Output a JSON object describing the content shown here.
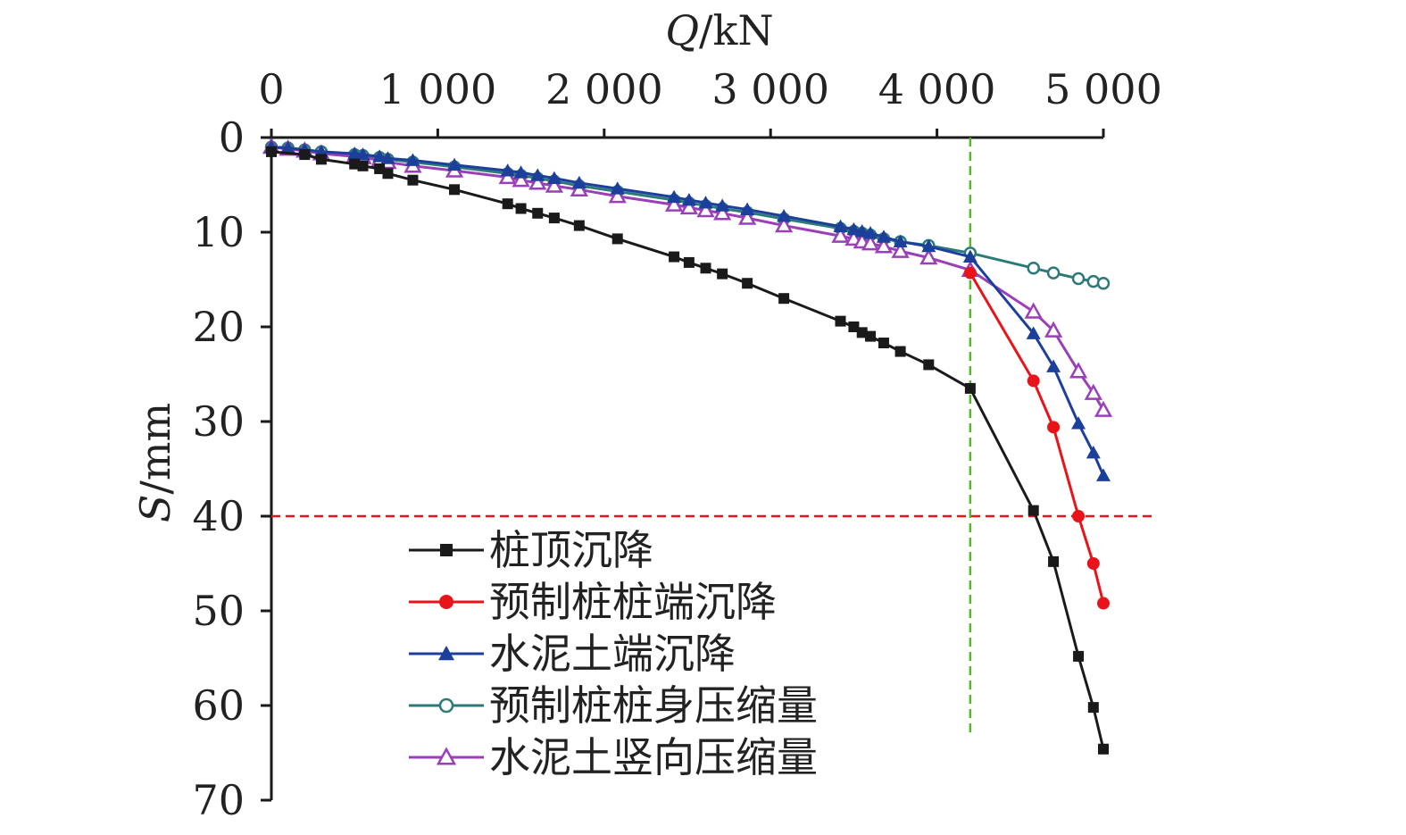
{
  "chart_data": {
    "type": "line",
    "xlabel": "Q/kN",
    "ylabel": "S/mm",
    "x_axis_position": "top",
    "y_axis_inverted": true,
    "xlim": [
      0,
      5000
    ],
    "ylim": [
      0,
      70
    ],
    "xticks": [
      0,
      1000,
      2000,
      3000,
      4000,
      5000
    ],
    "xtick_labels": [
      "0",
      "1 000",
      "2 000",
      "3 000",
      "4 000",
      "5 000"
    ],
    "yticks": [
      0,
      10,
      20,
      30,
      40,
      50,
      60,
      70
    ],
    "ytick_labels": [
      "0",
      "10",
      "20",
      "30",
      "40",
      "50",
      "60",
      "70"
    ],
    "grid": false,
    "legend_position": "bottom-center",
    "reference_lines": [
      {
        "orientation": "horizontal",
        "value": 40,
        "color": "#e8141a",
        "style": "dashed"
      },
      {
        "orientation": "vertical",
        "value": 4200,
        "color": "#5ab42f",
        "style": "dashed",
        "range": [
          0,
          63
        ]
      }
    ],
    "series": [
      {
        "name": "桩顶沉降",
        "color": "#1a1a1a",
        "marker": "square-filled",
        "x": [
          0,
          200,
          300,
          500,
          550,
          650,
          700,
          850,
          1100,
          1420,
          1500,
          1600,
          1700,
          1850,
          2080,
          2420,
          2510,
          2610,
          2710,
          2860,
          3080,
          3420,
          3500,
          3550,
          3600,
          3680,
          3780,
          3950,
          4200,
          4580,
          4700,
          4850,
          4940,
          5000
        ],
        "y": [
          1.5,
          1.8,
          2.3,
          2.8,
          3.0,
          3.3,
          3.8,
          4.5,
          5.5,
          7.0,
          7.5,
          8.0,
          8.5,
          9.3,
          10.7,
          12.6,
          13.2,
          13.8,
          14.4,
          15.4,
          17.0,
          19.4,
          20.0,
          20.6,
          21.0,
          21.7,
          22.6,
          24.0,
          26.5,
          39.4,
          44.8,
          54.8,
          60.2,
          64.6
        ]
      },
      {
        "name": "预制桩桩端沉降",
        "color": "#e8141a",
        "marker": "circle-filled",
        "x": [
          4200,
          4580,
          4700,
          4850,
          4940,
          5000
        ],
        "y": [
          14.3,
          25.7,
          30.6,
          40.0,
          45.0,
          49.2
        ]
      },
      {
        "name": "水泥土端沉降",
        "color": "#1c3f9c",
        "marker": "triangle-filled",
        "x": [
          0,
          100,
          200,
          300,
          500,
          550,
          650,
          700,
          850,
          1100,
          1420,
          1500,
          1600,
          1700,
          1850,
          2080,
          2420,
          2510,
          2610,
          2710,
          2860,
          3080,
          3420,
          3500,
          3550,
          3600,
          3680,
          3780,
          3950,
          4200,
          4580,
          4700,
          4850,
          4940,
          5000
        ],
        "y": [
          1.0,
          1.1,
          1.3,
          1.5,
          1.7,
          1.8,
          2.0,
          2.2,
          2.4,
          2.9,
          3.5,
          3.7,
          4.0,
          4.3,
          4.8,
          5.4,
          6.3,
          6.6,
          6.9,
          7.2,
          7.6,
          8.3,
          9.4,
          9.7,
          9.9,
          10.1,
          10.5,
          11.0,
          11.5,
          12.6,
          20.7,
          24.2,
          30.2,
          33.3,
          35.7
        ]
      },
      {
        "name": "预制桩桩身压缩量",
        "color": "#2c7a78",
        "marker": "circle-open",
        "x": [
          0,
          100,
          200,
          300,
          500,
          550,
          650,
          700,
          850,
          1100,
          1420,
          1500,
          1600,
          1700,
          1850,
          2080,
          2420,
          2510,
          2610,
          2710,
          2860,
          3080,
          3420,
          3500,
          3550,
          3600,
          3680,
          3780,
          3950,
          4200,
          4580,
          4700,
          4850,
          4940,
          5000
        ],
        "y": [
          1.0,
          1.1,
          1.3,
          1.5,
          1.8,
          1.9,
          2.1,
          2.3,
          2.6,
          3.1,
          3.8,
          4.0,
          4.3,
          4.6,
          5.1,
          5.7,
          6.6,
          6.9,
          7.2,
          7.5,
          7.9,
          8.6,
          9.6,
          9.9,
          10.1,
          10.3,
          10.7,
          11.0,
          11.4,
          12.2,
          13.8,
          14.3,
          14.9,
          15.2,
          15.4
        ]
      },
      {
        "name": "水泥土竖向压缩量",
        "color": "#9a3fb8",
        "marker": "triangle-open",
        "x": [
          0,
          100,
          200,
          300,
          500,
          550,
          650,
          700,
          850,
          1100,
          1420,
          1500,
          1600,
          1700,
          1850,
          2080,
          2420,
          2510,
          2610,
          2710,
          2860,
          3080,
          3420,
          3500,
          3550,
          3600,
          3680,
          3780,
          3950,
          4200,
          4580,
          4700,
          4850,
          4940,
          5000
        ],
        "y": [
          1.0,
          1.2,
          1.4,
          1.7,
          2.0,
          2.1,
          2.4,
          2.6,
          3.0,
          3.5,
          4.2,
          4.5,
          4.8,
          5.1,
          5.5,
          6.2,
          7.1,
          7.4,
          7.7,
          8.0,
          8.5,
          9.3,
          10.4,
          10.7,
          11.0,
          11.2,
          11.5,
          12.0,
          12.7,
          14.0,
          18.4,
          20.4,
          24.7,
          27.0,
          28.8
        ]
      }
    ]
  }
}
